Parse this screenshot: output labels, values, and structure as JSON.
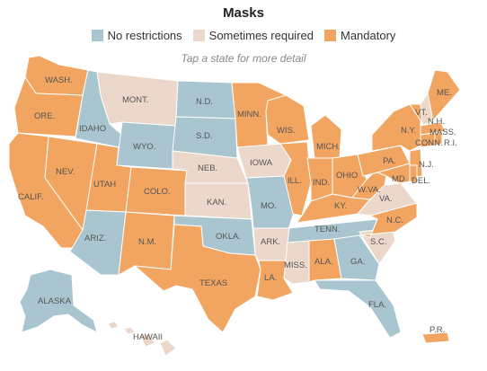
{
  "title": "Masks",
  "hint": "Tap a state for more detail",
  "legend": [
    {
      "key": "none",
      "label": "No restrictions",
      "color": "#a9c6d0"
    },
    {
      "key": "some",
      "label": "Sometimes required",
      "color": "#ecd8cb"
    },
    {
      "key": "mand",
      "label": "Mandatory",
      "color": "#f1a560"
    }
  ],
  "states": {
    "wa": {
      "label": "WASH.",
      "status": "mand"
    },
    "or": {
      "label": "ORE.",
      "status": "mand"
    },
    "ca": {
      "label": "CALIF.",
      "status": "mand"
    },
    "nv": {
      "label": "NEV.",
      "status": "mand"
    },
    "id": {
      "label": "IDAHO",
      "status": "none"
    },
    "mt": {
      "label": "MONT.",
      "status": "some"
    },
    "wy": {
      "label": "WYO.",
      "status": "none"
    },
    "ut": {
      "label": "UTAH",
      "status": "mand"
    },
    "co": {
      "label": "COLO.",
      "status": "mand"
    },
    "az": {
      "label": "ARIZ.",
      "status": "none"
    },
    "nm": {
      "label": "N.M.",
      "status": "mand"
    },
    "nd": {
      "label": "N.D.",
      "status": "none"
    },
    "sd": {
      "label": "S.D.",
      "status": "none"
    },
    "ne": {
      "label": "NEB.",
      "status": "some"
    },
    "ks": {
      "label": "KAN.",
      "status": "some"
    },
    "ok": {
      "label": "OKLA.",
      "status": "none"
    },
    "tx": {
      "label": "TEXAS",
      "status": "mand"
    },
    "mn": {
      "label": "MINN.",
      "status": "mand"
    },
    "ia": {
      "label": "IOWA",
      "status": "some"
    },
    "mo": {
      "label": "MO.",
      "status": "none"
    },
    "ar": {
      "label": "ARK.",
      "status": "some"
    },
    "la": {
      "label": "LA.",
      "status": "mand"
    },
    "wi": {
      "label": "WIS.",
      "status": "mand"
    },
    "il": {
      "label": "ILL.",
      "status": "mand"
    },
    "mi": {
      "label": "MICH.",
      "status": "mand"
    },
    "in": {
      "label": "IND.",
      "status": "mand"
    },
    "oh": {
      "label": "OHIO",
      "status": "mand"
    },
    "ky": {
      "label": "KY.",
      "status": "mand"
    },
    "tn": {
      "label": "TENN.",
      "status": "none"
    },
    "ms": {
      "label": "MISS.",
      "status": "some"
    },
    "al": {
      "label": "ALA.",
      "status": "mand"
    },
    "ga": {
      "label": "GA.",
      "status": "none"
    },
    "fl": {
      "label": "FLA.",
      "status": "none"
    },
    "sc": {
      "label": "S.C.",
      "status": "some"
    },
    "nc": {
      "label": "N.C.",
      "status": "mand"
    },
    "va": {
      "label": "VA.",
      "status": "some"
    },
    "wv": {
      "label": "W.VA.",
      "status": "mand"
    },
    "pa": {
      "label": "PA.",
      "status": "mand"
    },
    "ny": {
      "label": "N.Y.",
      "status": "mand"
    },
    "vt": {
      "label": "VT.",
      "status": "mand"
    },
    "nh": {
      "label": "N.H.",
      "status": "some"
    },
    "me": {
      "label": "ME.",
      "status": "mand"
    },
    "ma": {
      "label": "MASS.",
      "status": "mand"
    },
    "ct": {
      "label": "CONN.",
      "status": "mand"
    },
    "ri": {
      "label": "R.I.",
      "status": "mand"
    },
    "nj": {
      "label": "N.J.",
      "status": "mand"
    },
    "de": {
      "label": "DEL.",
      "status": "mand"
    },
    "md": {
      "label": "MD.",
      "status": "mand"
    },
    "ak": {
      "label": "ALASKA",
      "status": "none"
    },
    "hi": {
      "label": "HAWAII",
      "status": "some"
    },
    "pr": {
      "label": "P.R.",
      "status": "mand"
    }
  }
}
